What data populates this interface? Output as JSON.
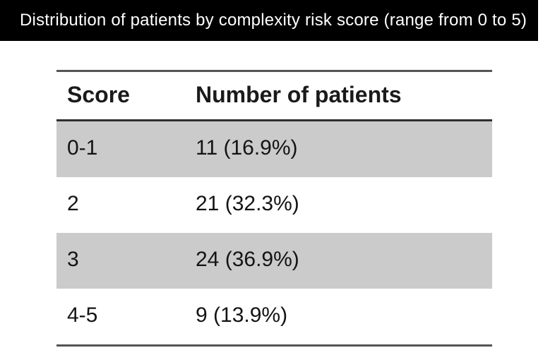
{
  "title_bar": {
    "text": "Distribution of patients by complexity risk score (range from 0 to 5)"
  },
  "table": {
    "columns": [
      "Score",
      "Number of patients"
    ],
    "rows": [
      {
        "score": "0-1",
        "patients": "11 (16.9%)"
      },
      {
        "score": "2",
        "patients": "21 (32.3%)"
      },
      {
        "score": "3",
        "patients": "24 (36.9%)"
      },
      {
        "score": "4-5",
        "patients": "9 (13.9%)"
      }
    ]
  },
  "colors": {
    "title_bar_background": "#000000",
    "title_bar_text": "#ffffff",
    "shaded_row_background": "#cbcbcb",
    "table_rule": "#545454",
    "header_rule": "#2f2f2f",
    "body_text": "#141414"
  }
}
